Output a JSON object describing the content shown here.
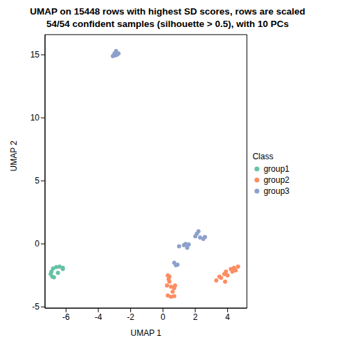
{
  "chart_data": {
    "type": "scatter",
    "title": "UMAP on 15448 rows with highest SD scores, rows are scaled",
    "subtitle": "54/54 confident samples (silhouette > 0.5), with 10 PCs",
    "x_label": "UMAP 1",
    "y_label": "UMAP 2",
    "legend_title": "Class",
    "legend": "right",
    "xlim": [
      -7.3,
      5.2
    ],
    "ylim": [
      -5.1,
      16.6
    ],
    "xticks": [
      -6,
      -4,
      -2,
      0,
      2,
      4
    ],
    "yticks": [
      -5,
      0,
      5,
      10,
      15
    ],
    "series": [
      {
        "name": "group1",
        "color": "#66C2A5",
        "x": [
          -6.9,
          -6.95,
          -6.85,
          -6.75,
          -6.8,
          -6.6,
          -6.5,
          -6.4,
          -6.2,
          -6.2
        ],
        "y": [
          -2.2,
          -2.4,
          -2.6,
          -2.65,
          -1.95,
          -1.85,
          -2.3,
          -1.8,
          -1.9,
          -2.0
        ]
      },
      {
        "name": "group2",
        "color": "#FC8D62",
        "x": [
          0.3,
          0.35,
          0.4,
          0.25,
          0.5,
          0.75,
          0.7,
          0.6,
          0.3,
          0.5,
          0.7,
          0.4,
          3.3,
          3.5,
          3.6,
          3.8,
          3.9,
          3.85,
          4.0,
          4.2,
          4.4,
          4.5,
          4.65,
          4.3
        ],
        "y": [
          -2.5,
          -2.8,
          -3.0,
          -3.3,
          -3.4,
          -3.3,
          -3.5,
          -3.8,
          -4.1,
          -4.2,
          -4.15,
          -2.6,
          -2.9,
          -2.6,
          -2.7,
          -2.4,
          -2.2,
          -3.0,
          -2.5,
          -2.0,
          -1.9,
          -2.1,
          -1.8,
          -2.2
        ]
      },
      {
        "name": "group3",
        "color": "#8DA0CB",
        "x": [
          -3.1,
          -3.0,
          -2.9,
          -2.85,
          -2.75,
          -2.95,
          0.7,
          0.8,
          0.9,
          1.0,
          1.3,
          1.4,
          1.5,
          1.6,
          2.0,
          2.1,
          2.2,
          2.3,
          2.5,
          2.6
        ],
        "y": [
          14.9,
          15.1,
          15.3,
          15.0,
          15.1,
          14.95,
          -1.5,
          -1.7,
          -1.65,
          -0.2,
          -0.1,
          0.0,
          -0.3,
          -0.05,
          0.6,
          0.8,
          1.0,
          0.5,
          0.4,
          0.55
        ]
      }
    ]
  }
}
